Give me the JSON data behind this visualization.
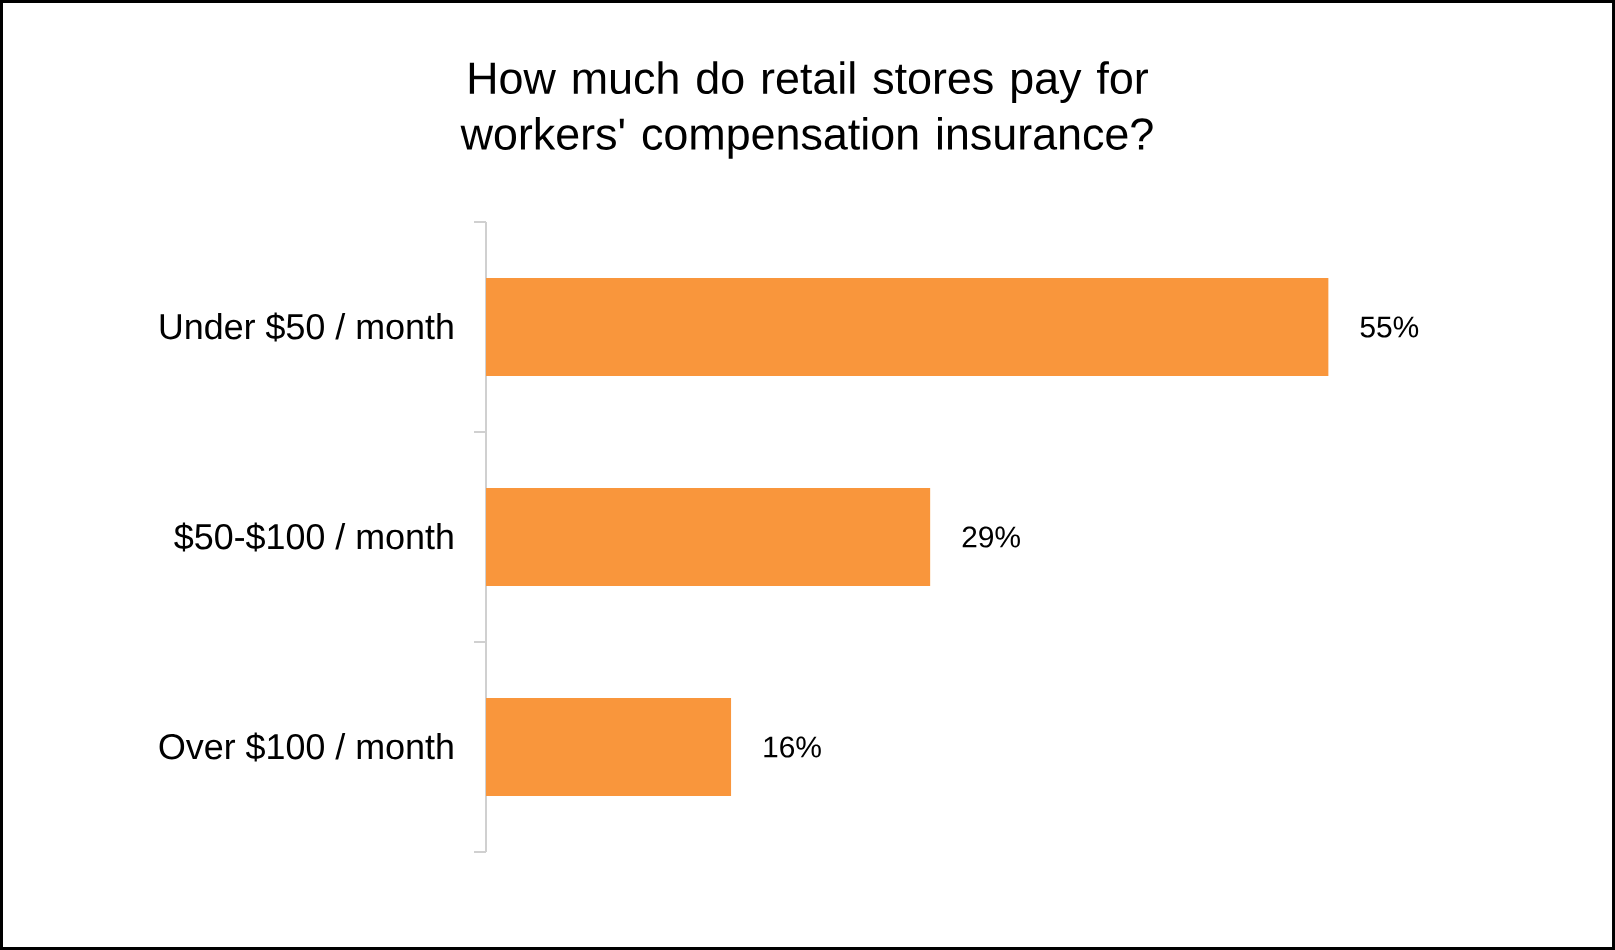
{
  "chart_data": {
    "type": "bar",
    "orientation": "horizontal",
    "title": "How much do retail stores pay for workers' compensation insurance?",
    "categories": [
      "Under $50 / month",
      "$50-$100 / month",
      "Over $100 / month"
    ],
    "values": [
      55,
      29,
      16
    ],
    "value_labels": [
      "55%",
      "29%",
      "16%"
    ],
    "color": "#f9963c"
  }
}
